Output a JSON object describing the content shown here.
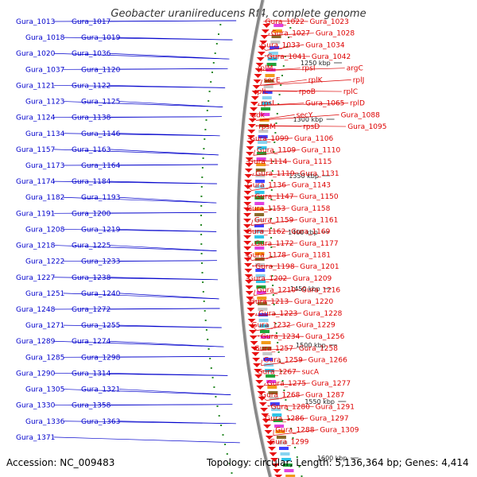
{
  "title": "Geobacter uraniireducens Rf4, complete genome",
  "footer": {
    "accession": "Accession: NC_009483",
    "topology": "Topology: circular; Length: 5,136,364 bp; Genes: 4,414"
  },
  "colors": {
    "left_labels": "#0000cc",
    "right_labels": "#dd0000",
    "backbone": "#888888",
    "tick": "#2a8a2a"
  },
  "ticks": [
    "1250 kbp",
    "1300 kbp",
    "1350 kbp",
    "1400 kbp",
    "1450 kbp",
    "1500 kbp",
    "1550 kbp",
    "1600 kbp"
  ],
  "left_genes": [
    "Gura_1013",
    "Gura_1017",
    "Gura_1018",
    "Gura_1019",
    "Gura_1020",
    "Gura_1036",
    "Gura_1037",
    "Gura_1120",
    "Gura_1121",
    "Gura_1122",
    "Gura_1123",
    "Gura_1125",
    "Gura_1124",
    "Gura_1138",
    "Gura_1134",
    "Gura_1146",
    "Gura_1157",
    "Gura_1163",
    "Gura_1173",
    "Gura_1164",
    "Gura_1174",
    "Gura_1184",
    "Gura_1182",
    "Gura_1193",
    "Gura_1191",
    "Gura_1200",
    "Gura_1208",
    "Gura_1219",
    "Gura_1218",
    "Gura_1225",
    "Gura_1222",
    "Gura_1233",
    "Gura_1227",
    "Gura_1238",
    "Gura_1251",
    "Gura_1240",
    "Gura_1248",
    "Gura_1272",
    "Gura_1271",
    "Gura_1255",
    "Gura_1289",
    "Gura_1274",
    "Gura_1285",
    "Gura_1298",
    "Gura_1290",
    "Gura_1314",
    "Gura_1305",
    "Gura_1321",
    "Gura_1330",
    "Gura_1358",
    "Gura_1336",
    "Gura_1363",
    "Gura_1371"
  ],
  "right_genes": [
    "Gura_1022",
    "Gura_1023",
    "Gura_1027",
    "Gura_1028",
    "Gura_1033",
    "Gura_1034",
    "Gura_1041",
    "Gura_1042",
    "rplM",
    "rpsI",
    "argC",
    "secE",
    "rplK",
    "rplJ",
    "rplL",
    "rpoB",
    "rplC",
    "rpsL",
    "Gura_1065",
    "rplD",
    "adk",
    "secY",
    "Gura_1088",
    "rpsM",
    "rpsD",
    "Gura_1095",
    "Gura_1099",
    "Gura_1106",
    "Gura_1109",
    "Gura_1110",
    "Gura_1114",
    "Gura_1115",
    "Gura_1119",
    "Gura_1131",
    "Gura_1136",
    "Gura_1143",
    "Gura_1147",
    "Gura_1150",
    "Gura_1153",
    "Gura_1158",
    "Gura_1159",
    "Gura_1161",
    "Gura_1162",
    "Gura_1169",
    "Gura_1172",
    "Gura_1177",
    "Gura_1178",
    "Gura_1181",
    "Gura_1198",
    "Gura_1201",
    "Gura_1202",
    "Gura_1209",
    "Gura_1210",
    "Gura_1216",
    "Gura_1213",
    "Gura_1220",
    "Gura_1223",
    "Gura_1228",
    "Gura_1232",
    "Gura_1229",
    "Gura_1234",
    "Gura_1256",
    "Gura_1257",
    "Gura_1258",
    "Gura_1259",
    "Gura_1266",
    "Gura_1267",
    "sucA",
    "Gura_1275",
    "Gura_1277",
    "Gura_1268",
    "Gura_1287",
    "Gura_1280",
    "Gura_1291",
    "Gura_1286",
    "Gura_1297",
    "Gura_1288",
    "Gura_1309",
    "Gura_1299"
  ]
}
